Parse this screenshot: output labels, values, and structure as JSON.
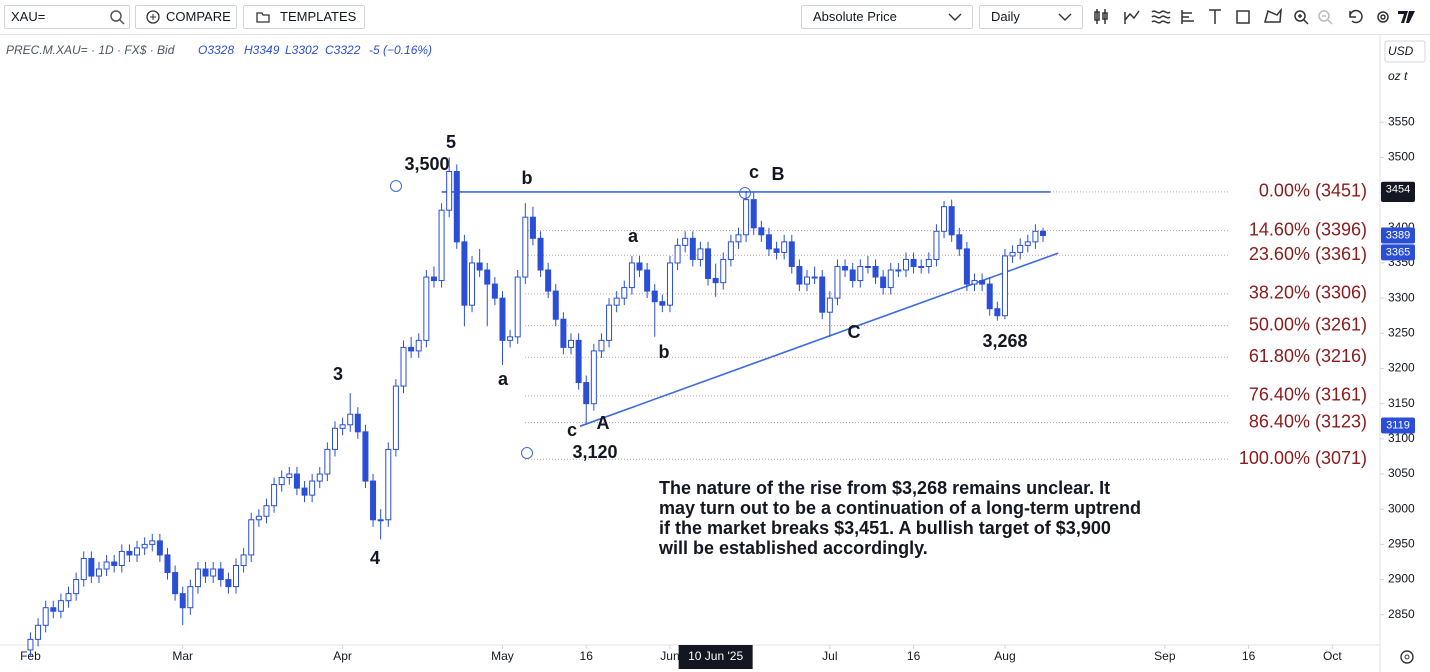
{
  "toolbar": {
    "search": "XAU=",
    "compare": "COMPARE",
    "templates": "TEMPLATES",
    "price_mode": "Absolute Price",
    "interval": "Daily"
  },
  "header": {
    "symbol": "PREC.M.XAU= · 1D · FX$ · Bid",
    "open": "O3328",
    "high": "H3349",
    "low": "L3302",
    "close": "C3322",
    "change": "-5 (−0.16%)"
  },
  "axis_units": {
    "currency": "USD",
    "unit": "oz t"
  },
  "chart_data": {
    "type": "candlestick",
    "up_color": "#2a4fd6",
    "down_color": "#2a4fd6",
    "drawing_color": "#3d6bde",
    "fib_color": "#8b1a1a",
    "candles": [
      [
        2800,
        2825,
        2790,
        2815
      ],
      [
        2815,
        2845,
        2805,
        2835
      ],
      [
        2835,
        2870,
        2825,
        2860
      ],
      [
        2860,
        2870,
        2845,
        2855
      ],
      [
        2855,
        2880,
        2845,
        2870
      ],
      [
        2870,
        2890,
        2860,
        2880
      ],
      [
        2880,
        2910,
        2870,
        2900
      ],
      [
        2900,
        2940,
        2890,
        2930
      ],
      [
        2930,
        2940,
        2895,
        2905
      ],
      [
        2905,
        2925,
        2895,
        2915
      ],
      [
        2915,
        2935,
        2905,
        2925
      ],
      [
        2925,
        2935,
        2910,
        2920
      ],
      [
        2920,
        2950,
        2910,
        2940
      ],
      [
        2940,
        2950,
        2925,
        2935
      ],
      [
        2935,
        2955,
        2925,
        2945
      ],
      [
        2945,
        2960,
        2935,
        2950
      ],
      [
        2950,
        2965,
        2940,
        2955
      ],
      [
        2955,
        2965,
        2925,
        2935
      ],
      [
        2935,
        2945,
        2900,
        2910
      ],
      [
        2910,
        2920,
        2870,
        2880
      ],
      [
        2880,
        2890,
        2835,
        2860
      ],
      [
        2860,
        2900,
        2850,
        2890
      ],
      [
        2890,
        2925,
        2880,
        2915
      ],
      [
        2915,
        2925,
        2895,
        2905
      ],
      [
        2905,
        2925,
        2895,
        2915
      ],
      [
        2915,
        2925,
        2890,
        2900
      ],
      [
        2900,
        2910,
        2880,
        2890
      ],
      [
        2890,
        2930,
        2880,
        2920
      ],
      [
        2920,
        2945,
        2910,
        2935
      ],
      [
        2935,
        2995,
        2925,
        2985
      ],
      [
        2985,
        3000,
        2975,
        2990
      ],
      [
        2990,
        3015,
        2980,
        3005
      ],
      [
        3005,
        3045,
        2995,
        3035
      ],
      [
        3035,
        3055,
        3025,
        3045
      ],
      [
        3045,
        3060,
        3035,
        3050
      ],
      [
        3050,
        3060,
        3020,
        3030
      ],
      [
        3030,
        3040,
        3010,
        3020
      ],
      [
        3020,
        3050,
        3010,
        3040
      ],
      [
        3040,
        3060,
        3030,
        3050
      ],
      [
        3050,
        3095,
        3040,
        3085
      ],
      [
        3085,
        3125,
        3075,
        3115
      ],
      [
        3115,
        3130,
        3105,
        3120
      ],
      [
        3120,
        3165,
        3110,
        3135
      ],
      [
        3135,
        3145,
        3100,
        3110
      ],
      [
        3110,
        3120,
        3030,
        3040
      ],
      [
        3040,
        3050,
        2975,
        2985
      ],
      [
        2985,
        3000,
        2957,
        2985
      ],
      [
        2985,
        3095,
        2975,
        3085
      ],
      [
        3085,
        3185,
        3075,
        3175
      ],
      [
        3175,
        3240,
        3165,
        3230
      ],
      [
        3230,
        3245,
        3215,
        3225
      ],
      [
        3225,
        3250,
        3215,
        3240
      ],
      [
        3240,
        3340,
        3230,
        3330
      ],
      [
        3330,
        3345,
        3315,
        3325
      ],
      [
        3325,
        3435,
        3315,
        3425
      ],
      [
        3425,
        3500,
        3415,
        3480
      ],
      [
        3480,
        3490,
        3370,
        3380
      ],
      [
        3380,
        3390,
        3260,
        3290
      ],
      [
        3290,
        3360,
        3280,
        3350
      ],
      [
        3350,
        3370,
        3330,
        3340
      ],
      [
        3340,
        3350,
        3260,
        3320
      ],
      [
        3320,
        3330,
        3290,
        3300
      ],
      [
        3300,
        3310,
        3205,
        3240
      ],
      [
        3240,
        3255,
        3230,
        3245
      ],
      [
        3245,
        3340,
        3235,
        3330
      ],
      [
        3330,
        3435,
        3320,
        3415
      ],
      [
        3415,
        3430,
        3375,
        3385
      ],
      [
        3385,
        3395,
        3330,
        3340
      ],
      [
        3340,
        3350,
        3300,
        3310
      ],
      [
        3310,
        3320,
        3260,
        3270
      ],
      [
        3270,
        3280,
        3220,
        3230
      ],
      [
        3230,
        3250,
        3220,
        3240
      ],
      [
        3240,
        3250,
        3170,
        3180
      ],
      [
        3180,
        3190,
        3120,
        3150
      ],
      [
        3150,
        3235,
        3140,
        3225
      ],
      [
        3225,
        3250,
        3215,
        3240
      ],
      [
        3240,
        3300,
        3230,
        3290
      ],
      [
        3290,
        3310,
        3280,
        3300
      ],
      [
        3300,
        3325,
        3290,
        3315
      ],
      [
        3315,
        3360,
        3305,
        3350
      ],
      [
        3350,
        3360,
        3330,
        3340
      ],
      [
        3340,
        3350,
        3300,
        3310
      ],
      [
        3310,
        3320,
        3245,
        3295
      ],
      [
        3295,
        3305,
        3280,
        3290
      ],
      [
        3290,
        3360,
        3280,
        3350
      ],
      [
        3350,
        3385,
        3340,
        3375
      ],
      [
        3375,
        3395,
        3365,
        3385
      ],
      [
        3385,
        3395,
        3345,
        3355
      ],
      [
        3355,
        3380,
        3345,
        3370
      ],
      [
        3370,
        3380,
        3318,
        3328
      ],
      [
        3328,
        3349,
        3302,
        3322
      ],
      [
        3322,
        3365,
        3312,
        3355
      ],
      [
        3355,
        3390,
        3345,
        3380
      ],
      [
        3380,
        3400,
        3370,
        3390
      ],
      [
        3390,
        3452,
        3380,
        3440
      ],
      [
        3440,
        3450,
        3390,
        3400
      ],
      [
        3400,
        3410,
        3380,
        3390
      ],
      [
        3390,
        3400,
        3360,
        3370
      ],
      [
        3370,
        3380,
        3355,
        3365
      ],
      [
        3365,
        3390,
        3355,
        3380
      ],
      [
        3380,
        3390,
        3335,
        3345
      ],
      [
        3345,
        3355,
        3310,
        3320
      ],
      [
        3320,
        3340,
        3310,
        3330
      ],
      [
        3330,
        3345,
        3320,
        3330
      ],
      [
        3330,
        3340,
        3270,
        3280
      ],
      [
        3280,
        3310,
        3245,
        3300
      ],
      [
        3300,
        3355,
        3290,
        3345
      ],
      [
        3345,
        3355,
        3330,
        3340
      ],
      [
        3340,
        3350,
        3315,
        3325
      ],
      [
        3325,
        3355,
        3315,
        3345
      ],
      [
        3345,
        3360,
        3335,
        3345
      ],
      [
        3345,
        3355,
        3320,
        3330
      ],
      [
        3330,
        3340,
        3305,
        3315
      ],
      [
        3315,
        3350,
        3305,
        3340
      ],
      [
        3340,
        3350,
        3330,
        3340
      ],
      [
        3340,
        3365,
        3330,
        3355
      ],
      [
        3355,
        3365,
        3335,
        3345
      ],
      [
        3345,
        3355,
        3335,
        3345
      ],
      [
        3345,
        3365,
        3335,
        3355
      ],
      [
        3355,
        3405,
        3345,
        3395
      ],
      [
        3395,
        3438,
        3385,
        3430
      ],
      [
        3430,
        3440,
        3380,
        3390
      ],
      [
        3390,
        3400,
        3360,
        3370
      ],
      [
        3370,
        3380,
        3310,
        3320
      ],
      [
        3320,
        3335,
        3310,
        3325
      ],
      [
        3325,
        3335,
        3310,
        3320
      ],
      [
        3320,
        3330,
        3275,
        3285
      ],
      [
        3285,
        3295,
        3268,
        3275
      ],
      [
        3275,
        3370,
        3270,
        3360
      ],
      [
        3360,
        3375,
        3350,
        3365
      ],
      [
        3365,
        3385,
        3355,
        3375
      ],
      [
        3375,
        3390,
        3365,
        3380
      ],
      [
        3380,
        3405,
        3370,
        3395
      ],
      [
        3395,
        3400,
        3380,
        3389
      ]
    ],
    "xlim": [
      -4,
      177
    ],
    "ylim": [
      2807,
      3674
    ],
    "xticks": [
      {
        "value": 0,
        "label": "Feb"
      },
      {
        "value": 20,
        "label": "Mar"
      },
      {
        "value": 41,
        "label": "Apr"
      },
      {
        "value": 62,
        "label": "May"
      },
      {
        "value": 73,
        "label": "16"
      },
      {
        "value": 84,
        "label": "Jun"
      },
      {
        "value": 105,
        "label": "Jul"
      },
      {
        "value": 116,
        "label": "16"
      },
      {
        "value": 128,
        "label": "Aug"
      },
      {
        "value": 149,
        "label": "Sep"
      },
      {
        "value": 160,
        "label": "16"
      },
      {
        "value": 171,
        "label": "Oct"
      }
    ],
    "yticks": [
      2850,
      2900,
      2950,
      3000,
      3050,
      3100,
      3150,
      3200,
      3250,
      3300,
      3350,
      3400,
      3450,
      3500,
      3550
    ],
    "grid": false,
    "crosshair": {
      "x": 90,
      "label": "10 Jun '25"
    },
    "fib_levels": [
      {
        "value": 3451,
        "label": "0.00% (3451)"
      },
      {
        "value": 3396,
        "label": "14.60% (3396)"
      },
      {
        "value": 3361,
        "label": "23.60% (3361)"
      },
      {
        "value": 3306,
        "label": "38.20% (3306)"
      },
      {
        "value": 3261,
        "label": "50.00% (3261)"
      },
      {
        "value": 3216,
        "label": "61.80% (3216)"
      },
      {
        "value": 3161,
        "label": "76.40% (3161)"
      },
      {
        "value": 3123,
        "label": "86.40% (3123)"
      },
      {
        "value": 3071,
        "label": "100.00% (3071)"
      }
    ],
    "trendlines": [
      [
        [
          72.2,
          3118
        ],
        [
          135,
          3364
        ]
      ],
      [
        [
          54,
          3451
        ],
        [
          134,
          3451
        ]
      ]
    ],
    "price_tags": [
      {
        "value": 3448,
        "color": "#131722"
      },
      {
        "value": 3454,
        "color": "#131722"
      },
      {
        "value": 3389,
        "color": "#2a4fd6"
      },
      {
        "value": 3365,
        "color": "#2a4fd6"
      },
      {
        "value": 3119,
        "color": "#2a4fd6"
      }
    ],
    "wave_labels": [
      "5",
      "3,500",
      "b",
      "c",
      "B",
      "a",
      "3",
      "a",
      "b",
      "C",
      "3,268",
      "4",
      "c",
      "A",
      "3,120"
    ],
    "annotation": [
      "The nature of the rise from $3,268 remains unclear. It",
      "may turn out to be a continuation of a long-term uptrend",
      "if the market breaks $3,451. A bullish target of $3,900",
      "will be established accordingly."
    ]
  }
}
